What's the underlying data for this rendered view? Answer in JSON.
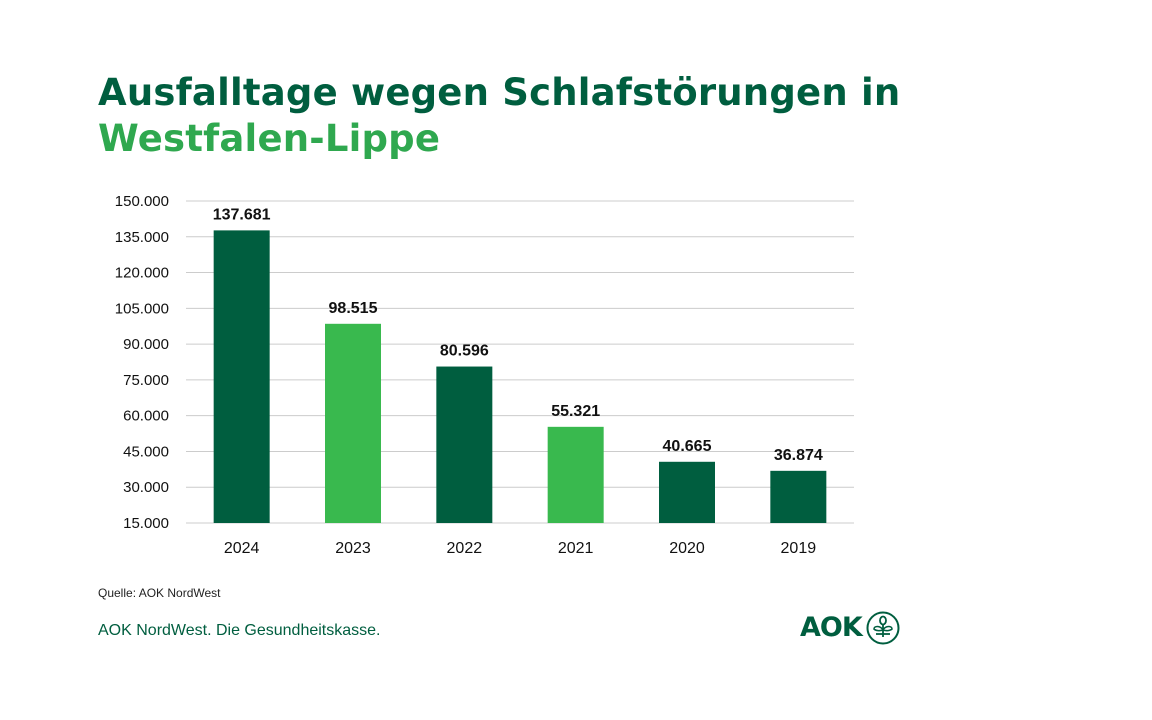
{
  "title": {
    "line1": "Ausfalltage wegen Schlafstörungen in",
    "line2": "Westfalen-Lippe"
  },
  "colors": {
    "dark_green": "#005e3f",
    "light_green": "#39b94e",
    "title_dark": "#005e3f",
    "title_light": "#2fa84f",
    "grid": "#cccccc"
  },
  "chart_data": {
    "type": "bar",
    "title": "Ausfalltage wegen Schlafstörungen in Westfalen-Lippe",
    "xlabel": "",
    "ylabel": "",
    "categories": [
      "2024",
      "2023",
      "2022",
      "2021",
      "2020",
      "2019"
    ],
    "values": [
      137681,
      98515,
      80596,
      55321,
      40665,
      36874
    ],
    "value_labels": [
      "137.681",
      "98.515",
      "80.596",
      "55.321",
      "40.665",
      "36.874"
    ],
    "bar_colors": [
      "dark",
      "light",
      "dark",
      "light",
      "dark",
      "dark"
    ],
    "ylim": [
      15000,
      150000
    ],
    "yticks": [
      15000,
      30000,
      45000,
      60000,
      75000,
      90000,
      105000,
      120000,
      135000,
      150000
    ],
    "ytick_labels": [
      "15.000",
      "30.000",
      "45.000",
      "60.000",
      "75.000",
      "90.000",
      "105.000",
      "120.000",
      "135.000",
      "150.000"
    ],
    "grid": true,
    "legend": "none"
  },
  "footer": {
    "source": "Quelle: AOK NordWest",
    "tagline": "AOK NordWest. Die Gesundheitskasse.",
    "logo_text": "AOK",
    "logo_icon": "aok-tree-icon"
  }
}
